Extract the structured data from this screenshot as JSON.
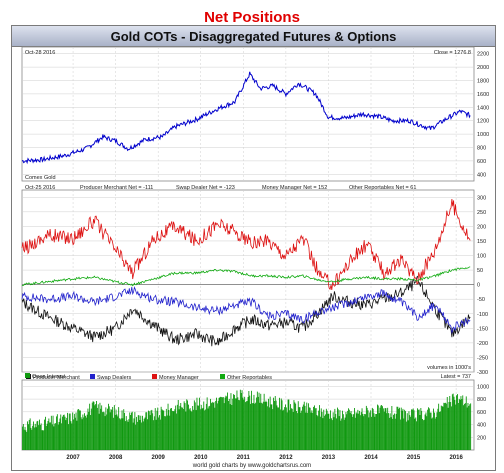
{
  "page_title": "Net Positions",
  "chart_title": "Gold COTs - Disaggregated Futures & Options",
  "credit": "world gold charts by www.goldchartsrus.com",
  "colors": {
    "price_line": "#0000cc",
    "producer": "#111111",
    "swap": "#2222cc",
    "money_manager": "#dd1111",
    "other": "#11aa11",
    "open_interest": "#119911",
    "grid": "#cfcfcf",
    "zero_line": "#555555"
  },
  "x_ticks": [
    "2007",
    "2008",
    "2009",
    "2010",
    "2011",
    "2012",
    "2013",
    "2014",
    "2015",
    "2016"
  ],
  "chart_data": [
    {
      "type": "line",
      "panel": "price",
      "date_label": "Oct-28 2016",
      "readout": "Close = 1276.8",
      "caption": "Comex Gold",
      "y_ticks": [
        400,
        600,
        800,
        1000,
        1200,
        1400,
        1600,
        1800,
        2000,
        2200
      ],
      "ylim": [
        300,
        2300
      ],
      "x": [
        2006.3,
        2006.8,
        2007.3,
        2007.8,
        2008.2,
        2008.5,
        2008.8,
        2009.2,
        2009.6,
        2009.9,
        2010.4,
        2010.9,
        2011.3,
        2011.65,
        2011.9,
        2012.2,
        2012.5,
        2012.8,
        2013.2,
        2013.5,
        2013.9,
        2014.3,
        2014.7,
        2015.0,
        2015.4,
        2015.9,
        2016.3,
        2016.6,
        2016.83
      ],
      "series": [
        {
          "name": "",
          "values": [
            600,
            620,
            680,
            780,
            960,
            900,
            780,
            920,
            960,
            1110,
            1220,
            1380,
            1480,
            1900,
            1680,
            1720,
            1600,
            1760,
            1600,
            1250,
            1240,
            1300,
            1260,
            1200,
            1200,
            1080,
            1240,
            1340,
            1277
          ]
        }
      ]
    },
    {
      "type": "line",
      "panel": "net_positions",
      "date_label": "Oct-25 2016",
      "readouts": [
        "Producer Merchant Net = -111",
        "Swap Dealer Net = -123",
        "Money Manager Net = 152",
        "Other Reportables Net = 61"
      ],
      "y_ticks": [
        -300,
        -250,
        -200,
        -150,
        -100,
        -50,
        0,
        50,
        100,
        150,
        200,
        250,
        300
      ],
      "ylim": [
        -300,
        325
      ],
      "units_note": "volumes in 1000's",
      "x": [
        2006.3,
        2006.9,
        2007.5,
        2008.0,
        2008.5,
        2008.9,
        2009.4,
        2009.9,
        2010.4,
        2010.9,
        2011.3,
        2011.7,
        2012.1,
        2012.5,
        2012.9,
        2013.3,
        2013.6,
        2014.0,
        2014.4,
        2014.8,
        2015.2,
        2015.6,
        2016.0,
        2016.4,
        2016.83
      ],
      "series": [
        {
          "name": "Producer Merchant",
          "values": [
            -60,
            -110,
            -150,
            -180,
            -150,
            -80,
            -140,
            -190,
            -170,
            -200,
            -150,
            -120,
            -140,
            -130,
            -150,
            -90,
            -40,
            -60,
            -70,
            -50,
            -30,
            10,
            -80,
            -170,
            -111
          ]
        },
        {
          "name": "Swap Dealers",
          "values": [
            -40,
            -50,
            -40,
            -60,
            -40,
            -20,
            -50,
            -60,
            -80,
            -90,
            -70,
            -60,
            -110,
            -100,
            -120,
            -90,
            -80,
            -60,
            -40,
            -30,
            -60,
            -110,
            -70,
            -150,
            -123
          ]
        },
        {
          "name": "Money Manager",
          "values": [
            120,
            170,
            160,
            220,
            120,
            40,
            160,
            200,
            150,
            210,
            180,
            140,
            150,
            100,
            160,
            30,
            0,
            80,
            140,
            40,
            80,
            20,
            120,
            280,
            152
          ]
        },
        {
          "name": "Other Reportables",
          "values": [
            0,
            10,
            20,
            25,
            10,
            0,
            20,
            40,
            40,
            50,
            45,
            30,
            30,
            25,
            30,
            15,
            10,
            20,
            25,
            20,
            20,
            15,
            30,
            50,
            61
          ]
        }
      ]
    },
    {
      "type": "bar",
      "panel": "open_interest",
      "readout": "Latest = 737",
      "y_ticks": [
        200,
        400,
        600,
        800,
        1000
      ],
      "ylim": [
        0,
        1100
      ],
      "x": [
        2006.3,
        2006.9,
        2007.5,
        2008.0,
        2008.5,
        2009.0,
        2009.5,
        2010.0,
        2010.5,
        2011.0,
        2011.5,
        2012.0,
        2012.5,
        2013.0,
        2013.5,
        2014.0,
        2014.5,
        2015.0,
        2015.5,
        2016.0,
        2016.5,
        2016.83
      ],
      "series": [
        {
          "name": "Open Interest",
          "values": [
            380,
            420,
            520,
            680,
            600,
            500,
            560,
            700,
            720,
            780,
            860,
            780,
            700,
            640,
            580,
            560,
            620,
            580,
            540,
            600,
            820,
            737
          ]
        }
      ]
    }
  ]
}
